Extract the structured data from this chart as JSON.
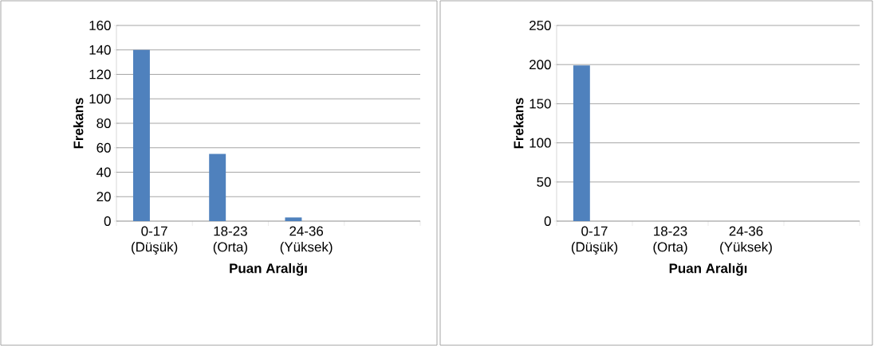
{
  "chart_data": [
    {
      "type": "bar",
      "categories": [
        "0-17 (Düşük)",
        "18-23 (Orta)",
        "24-36 (Yüksek)",
        null
      ],
      "values": [
        140,
        55,
        3,
        null
      ],
      "color": "#4f81bd",
      "ylim": [
        0,
        160
      ],
      "yticks": [
        0,
        20,
        40,
        60,
        80,
        100,
        120,
        140,
        160
      ],
      "grid": "y",
      "xlabel": "Puan Aralığı",
      "ylabel": "Frekans"
    },
    {
      "type": "bar",
      "categories": [
        "0-17 (Düşük)",
        "18-23 (Orta)",
        "24-36 (Yüksek)",
        null
      ],
      "values": [
        199,
        0,
        0,
        null
      ],
      "color": "#4f81bd",
      "ylim": [
        0,
        250
      ],
      "yticks": [
        0,
        50,
        100,
        150,
        200,
        250
      ],
      "grid": "y",
      "xlabel": "Puan Aralığı",
      "ylabel": "Frekans"
    }
  ]
}
